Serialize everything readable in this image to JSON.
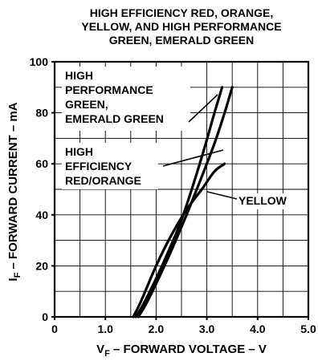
{
  "chart_data": {
    "type": "line",
    "title": [
      "HIGH EFFICIENCY RED, ORANGE,",
      "YELLOW, AND HIGH PERFORMANCE",
      "GREEN, EMERALD GREEN"
    ],
    "xlabel": {
      "main": "V",
      "sub": "F",
      "rest": " – FORWARD VOLTAGE – V"
    },
    "ylabel": {
      "main": "I",
      "sub": "F",
      "rest": " – FORWARD CURRENT – mA"
    },
    "xlim": [
      0,
      5
    ],
    "ylim": [
      0,
      100
    ],
    "x_ticks": [
      0,
      1,
      2,
      3,
      4,
      5
    ],
    "x_tick_labels": [
      "0",
      "1.0",
      "2.0",
      "3.0",
      "4.0",
      "5.0"
    ],
    "y_ticks": [
      0,
      20,
      40,
      60,
      80,
      100
    ],
    "y_tick_labels": [
      "0",
      "20",
      "40",
      "60",
      "80",
      "100"
    ],
    "grid": true,
    "series": [
      {
        "name": [
          "HIGH",
          "PERFORMANCE",
          "GREEN,",
          "EMERALD GREEN"
        ],
        "x": [
          1.6,
          1.75,
          2.0,
          2.25,
          2.5,
          2.75,
          2.95,
          3.15,
          3.3
        ],
        "y": [
          0,
          5,
          15,
          26,
          38,
          53,
          66,
          80,
          90
        ]
      },
      {
        "name": [
          "HIGH",
          "EFFICIENCY",
          "RED/ORANGE"
        ],
        "x": [
          1.65,
          1.8,
          2.0,
          2.3,
          2.6,
          2.9,
          3.15,
          3.35,
          3.5
        ],
        "y": [
          0,
          5,
          13,
          26,
          40,
          55,
          68,
          80,
          90
        ]
      },
      {
        "name": [
          "YELLOW"
        ],
        "x": [
          1.55,
          1.7,
          2.0,
          2.3,
          2.6,
          2.9,
          3.15,
          3.35
        ],
        "y": [
          0,
          6,
          20,
          32,
          42,
          50,
          57,
          60
        ]
      }
    ]
  }
}
